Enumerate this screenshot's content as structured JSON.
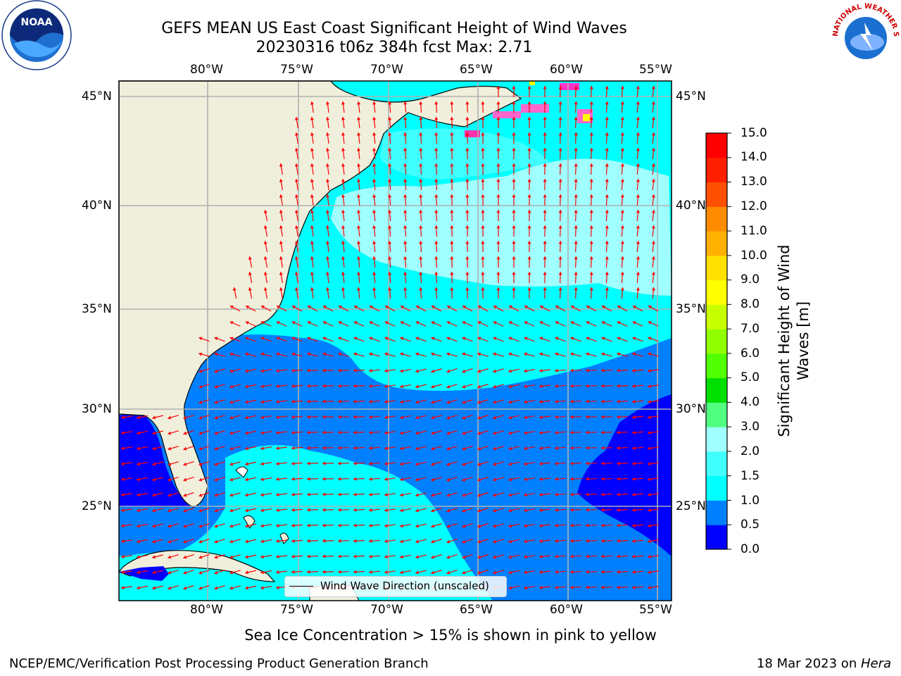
{
  "title": {
    "line1": "GEFS MEAN US East Coast Significant Height of Wind Waves",
    "line2": "20230316 t06z 384h fcst   Max: 2.71"
  },
  "axes": {
    "lon_labels": [
      "80°W",
      "75°W",
      "70°W",
      "65°W",
      "60°W",
      "55°W"
    ],
    "lat_labels": [
      "45°N",
      "40°N",
      "35°N",
      "30°N",
      "25°N"
    ]
  },
  "colorbar": {
    "label_line1": "Significant Height of Wind",
    "label_line2": "Waves [m]",
    "ticks": [
      "0.0",
      "0.5",
      "1.0",
      "1.5",
      "2.0",
      "3.0",
      "4.0",
      "5.0",
      "6.0",
      "7.0",
      "8.0",
      "9.0",
      "10.0",
      "11.0",
      "12.0",
      "13.0",
      "14.0",
      "15.0"
    ],
    "colors": [
      "#0000ff",
      "#0080ff",
      "#00ffff",
      "#40ffff",
      "#a0ffff",
      "#50ff80",
      "#00e000",
      "#50ff00",
      "#90ff00",
      "#c8ff00",
      "#ffff00",
      "#ffe000",
      "#ffb000",
      "#ff8c00",
      "#ff5000",
      "#ff2000",
      "#ff0000"
    ]
  },
  "legend": {
    "label": "Wind Wave Direction (unscaled)"
  },
  "note": "Sea Ice Concentration > 15% is shown in pink to yellow",
  "footer": {
    "left": "NCEP/EMC/Verification Post Processing Product Generation Branch",
    "right_date": "18 Mar 2023 on ",
    "right_host": "Hera"
  },
  "logos": {
    "noaa": "NOAA",
    "nws": "NATIONAL WEATHER SERVICE"
  },
  "colors": {
    "land": "#efefdc",
    "arrow": "#ff0000",
    "grid": "#b0b0b0"
  }
}
